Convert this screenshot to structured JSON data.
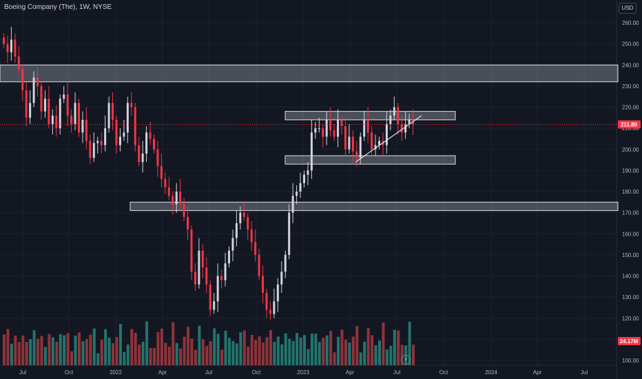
{
  "header": {
    "title": "Boeing Company (The), 1W, NYSE",
    "currency": "USD"
  },
  "price_tag": "211.80",
  "volume_tag": "24.17M",
  "colors": {
    "up": "#d1d4dc",
    "down": "#f23645",
    "vol_up": "#22756e",
    "vol_down": "#8f3439",
    "tag": "#f23645"
  },
  "chart_data": {
    "type": "candlestick",
    "title": "Boeing Company (The), 1W, NYSE",
    "ylim": [
      98,
      264
    ],
    "y_ticks": [
      "260.00",
      "250.00",
      "240.00",
      "230.00",
      "220.00",
      "210.00",
      "200.00",
      "190.00",
      "180.00",
      "170.00",
      "160.00",
      "150.00",
      "140.00",
      "130.00",
      "120.00",
      "110.00",
      "100.00"
    ],
    "x_ticks": [
      "Jul",
      "Oct",
      "2022",
      "Apr",
      "Jul",
      "Oct",
      "2023",
      "Apr",
      "Jul",
      "Oct",
      "2024",
      "Apr",
      "Jul"
    ],
    "last_price": 211.8,
    "last_volume": "24.17M",
    "closes": [
      250,
      246,
      252,
      244,
      238,
      228,
      215,
      222,
      234,
      230,
      218,
      224,
      212,
      216,
      210,
      224,
      226,
      216,
      212,
      222,
      208,
      214,
      204,
      196,
      203,
      204,
      202,
      210,
      222,
      214,
      202,
      206,
      208,
      222,
      220,
      202,
      194,
      198,
      208,
      205,
      200,
      192,
      186,
      182,
      178,
      174,
      180,
      174,
      168,
      162,
      142,
      136,
      152,
      144,
      136,
      124,
      128,
      140,
      138,
      146,
      152,
      158,
      165,
      170,
      168,
      162,
      156,
      150,
      140,
      132,
      124,
      122,
      128,
      136,
      142,
      150,
      170,
      178,
      180,
      184,
      188,
      190,
      208,
      210,
      210,
      206,
      214,
      209,
      206,
      214,
      211,
      200,
      206,
      199,
      196,
      206,
      214,
      208,
      200,
      202,
      204,
      202,
      212,
      216,
      220,
      212,
      208,
      212,
      214,
      211.8
    ],
    "volume_note": "weekly volume bars"
  },
  "annotations": {
    "zones": [
      {
        "name": "resistance-zone-upper",
        "low": 232,
        "high": 240
      },
      {
        "name": "resistance-zone-mid",
        "low": 214,
        "high": 218
      },
      {
        "name": "support-zone-mid",
        "low": 193,
        "high": 197
      },
      {
        "name": "support-zone-lower",
        "low": 171,
        "high": 175
      }
    ],
    "trendline": {
      "from": [
        94,
        194
      ],
      "to": [
        109,
        216
      ]
    }
  }
}
